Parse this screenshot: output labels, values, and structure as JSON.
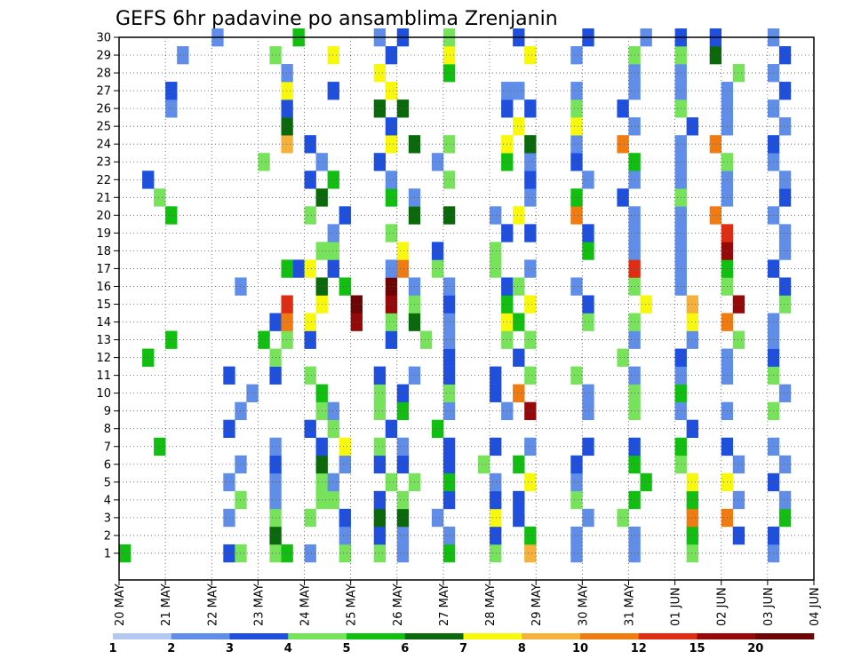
{
  "chart_data": {
    "type": "heatmap",
    "title": "GEFS 6hr padavine po ansamblima Zrenjanin",
    "xlabel": "",
    "ylabel": "",
    "x_ticks": [
      "20 MAY",
      "21 MAY",
      "22 MAY",
      "23 MAY",
      "24 MAY",
      "25 MAY",
      "26 MAY",
      "27 MAY",
      "28 MAY",
      "29 MAY",
      "30 MAY",
      "31 MAY",
      "01 JUN",
      "02 JUN",
      "03 JUN",
      "04 JUN"
    ],
    "y_ticks": [
      "1",
      "2",
      "3",
      "4",
      "5",
      "6",
      "7",
      "8",
      "9",
      "10",
      "11",
      "12",
      "13",
      "14",
      "15",
      "16",
      "17",
      "18",
      "19",
      "20",
      "21",
      "22",
      "23",
      "24",
      "25",
      "26",
      "27",
      "28",
      "29",
      "30"
    ],
    "members": 30,
    "steps_per_day": 4,
    "days": 15,
    "grid": true,
    "colorbar": {
      "labels": [
        "1",
        "2",
        "3",
        "4",
        "5",
        "6",
        "7",
        "8",
        "10",
        "12",
        "15",
        "20"
      ],
      "colors": [
        "#b4c8f4",
        "#5f8de8",
        "#1e4fde",
        "#77e35b",
        "#11bf11",
        "#0a690a",
        "#f8f80c",
        "#f5b13a",
        "#f07b11",
        "#e02c13",
        "#970808",
        "#6d0505"
      ]
    },
    "cells": [
      [
        1,
        0,
        4
      ],
      [
        13,
        4,
        4
      ],
      [
        12,
        2,
        4
      ],
      [
        7,
        3,
        4
      ],
      [
        20,
        4,
        4
      ],
      [
        21,
        3,
        3
      ],
      [
        22,
        2,
        2
      ],
      [
        26,
        4,
        1
      ],
      [
        27,
        4,
        2
      ],
      [
        29,
        5,
        1
      ],
      [
        30,
        8,
        1
      ],
      [
        1,
        9,
        2
      ],
      [
        1,
        10,
        3
      ],
      [
        3,
        9,
        1
      ],
      [
        4,
        10,
        3
      ],
      [
        5,
        9,
        1
      ],
      [
        6,
        10,
        1
      ],
      [
        8,
        9,
        2
      ],
      [
        9,
        10,
        1
      ],
      [
        10,
        11,
        1
      ],
      [
        11,
        9,
        2
      ],
      [
        13,
        12,
        4
      ],
      [
        14,
        13,
        2
      ],
      [
        16,
        10,
        1
      ],
      [
        17,
        15,
        2
      ],
      [
        23,
        12,
        3
      ],
      [
        1,
        13,
        3
      ],
      [
        1,
        14,
        4
      ],
      [
        2,
        13,
        5
      ],
      [
        3,
        13,
        3
      ],
      [
        4,
        13,
        1
      ],
      [
        5,
        13,
        1
      ],
      [
        6,
        13,
        2
      ],
      [
        7,
        13,
        1
      ],
      [
        11,
        13,
        2
      ],
      [
        12,
        13,
        3
      ],
      [
        13,
        14,
        3
      ],
      [
        14,
        14,
        8
      ],
      [
        15,
        14,
        9
      ],
      [
        17,
        14,
        4
      ],
      [
        24,
        14,
        7
      ],
      [
        25,
        14,
        5
      ],
      [
        26,
        14,
        2
      ],
      [
        27,
        14,
        6
      ],
      [
        28,
        14,
        1
      ],
      [
        29,
        13,
        3
      ],
      [
        30,
        15,
        4
      ],
      [
        1,
        16,
        1
      ],
      [
        3,
        16,
        3
      ],
      [
        4,
        17,
        3
      ],
      [
        5,
        17,
        3
      ],
      [
        6,
        17,
        5
      ],
      [
        7,
        17,
        2
      ],
      [
        8,
        16,
        2
      ],
      [
        9,
        17,
        3
      ],
      [
        10,
        17,
        4
      ],
      [
        11,
        16,
        3
      ],
      [
        13,
        16,
        2
      ],
      [
        14,
        16,
        6
      ],
      [
        15,
        17,
        6
      ],
      [
        16,
        17,
        5
      ],
      [
        17,
        16,
        6
      ],
      [
        18,
        17,
        3
      ],
      [
        20,
        16,
        3
      ],
      [
        21,
        17,
        5
      ],
      [
        22,
        16,
        2
      ],
      [
        23,
        17,
        1
      ],
      [
        24,
        16,
        2
      ],
      [
        1,
        19,
        3
      ],
      [
        2,
        19,
        1
      ],
      [
        3,
        19,
        2
      ],
      [
        4,
        18,
        3
      ],
      [
        5,
        18,
        1
      ],
      [
        6,
        19,
        1
      ],
      [
        7,
        19,
        6
      ],
      [
        8,
        18,
        3
      ],
      [
        9,
        18,
        1
      ],
      [
        14,
        20,
        10
      ],
      [
        15,
        20,
        11
      ],
      [
        16,
        19,
        4
      ],
      [
        17,
        18,
        2
      ],
      [
        18,
        18,
        3
      ],
      [
        19,
        18,
        1
      ],
      [
        20,
        19,
        2
      ],
      [
        22,
        18,
        4
      ],
      [
        27,
        18,
        2
      ],
      [
        29,
        18,
        6
      ],
      [
        1,
        22,
        3
      ],
      [
        2,
        22,
        2
      ],
      [
        3,
        22,
        5
      ],
      [
        4,
        22,
        2
      ],
      [
        5,
        23,
        3
      ],
      [
        6,
        22,
        2
      ],
      [
        7,
        22,
        3
      ],
      [
        8,
        23,
        2
      ],
      [
        9,
        22,
        3
      ],
      [
        10,
        22,
        3
      ],
      [
        11,
        22,
        2
      ],
      [
        13,
        23,
        2
      ],
      [
        14,
        23,
        3
      ],
      [
        15,
        23,
        10
      ],
      [
        16,
        23,
        11
      ],
      [
        17,
        23,
        1
      ],
      [
        19,
        23,
        3
      ],
      [
        21,
        23,
        4
      ],
      [
        22,
        23,
        1
      ],
      [
        23,
        22,
        2
      ],
      [
        24,
        23,
        6
      ],
      [
        25,
        23,
        2
      ],
      [
        26,
        22,
        5
      ],
      [
        27,
        23,
        6
      ],
      [
        28,
        22,
        6
      ],
      [
        29,
        23,
        2
      ],
      [
        30,
        22,
        1
      ],
      [
        1,
        24,
        1
      ],
      [
        2,
        24,
        1
      ],
      [
        3,
        24,
        5
      ],
      [
        4,
        24,
        3
      ],
      [
        5,
        25,
        3
      ],
      [
        6,
        24,
        2
      ],
      [
        7,
        24,
        1
      ],
      [
        9,
        24,
        4
      ],
      [
        10,
        24,
        2
      ],
      [
        11,
        25,
        1
      ],
      [
        13,
        26,
        3
      ],
      [
        14,
        25,
        5
      ],
      [
        15,
        25,
        3
      ],
      [
        16,
        25,
        1
      ],
      [
        17,
        24,
        8
      ],
      [
        18,
        24,
        6
      ],
      [
        20,
        25,
        5
      ],
      [
        21,
        25,
        1
      ],
      [
        24,
        25,
        5
      ],
      [
        26,
        24,
        5
      ],
      [
        30,
        24,
        2
      ],
      [
        1,
        28,
        4
      ],
      [
        2,
        28,
        1
      ],
      [
        3,
        27,
        1
      ],
      [
        4,
        28,
        2
      ],
      [
        5,
        28,
        4
      ],
      [
        6,
        28,
        2
      ],
      [
        7,
        28,
        2
      ],
      [
        8,
        27,
        4
      ],
      [
        9,
        28,
        1
      ],
      [
        10,
        28,
        3
      ],
      [
        11,
        28,
        2
      ],
      [
        12,
        28,
        2
      ],
      [
        13,
        28,
        1
      ],
      [
        14,
        28,
        1
      ],
      [
        15,
        28,
        2
      ],
      [
        16,
        28,
        1
      ],
      [
        17,
        27,
        3
      ],
      [
        18,
        27,
        2
      ],
      [
        20,
        28,
        5
      ],
      [
        22,
        28,
        3
      ],
      [
        23,
        27,
        1
      ],
      [
        24,
        28,
        3
      ],
      [
        28,
        28,
        4
      ],
      [
        29,
        28,
        6
      ],
      [
        30,
        28,
        3
      ],
      [
        1,
        32,
        3
      ],
      [
        2,
        32,
        2
      ],
      [
        3,
        32,
        6
      ],
      [
        4,
        32,
        2
      ],
      [
        5,
        32,
        1
      ],
      [
        6,
        31,
        3
      ],
      [
        7,
        32,
        2
      ],
      [
        9,
        33,
        1
      ],
      [
        10,
        32,
        2
      ],
      [
        11,
        32,
        2
      ],
      [
        13,
        33,
        3
      ],
      [
        14,
        33,
        6
      ],
      [
        15,
        33,
        4
      ],
      [
        16,
        33,
        2
      ],
      [
        17,
        32,
        3
      ],
      [
        18,
        32,
        3
      ],
      [
        19,
        33,
        2
      ],
      [
        20,
        32,
        1
      ],
      [
        23,
        33,
        4
      ],
      [
        24,
        33,
        6
      ],
      [
        26,
        33,
        2
      ],
      [
        27,
        33,
        1
      ],
      [
        1,
        35,
        7
      ],
      [
        2,
        35,
        4
      ],
      [
        3,
        34,
        2
      ],
      [
        4,
        34,
        2
      ],
      [
        5,
        35,
        6
      ],
      [
        6,
        34,
        4
      ],
      [
        7,
        35,
        1
      ],
      [
        9,
        35,
        10
      ],
      [
        10,
        34,
        8
      ],
      [
        11,
        35,
        3
      ],
      [
        12,
        34,
        2
      ],
      [
        13,
        35,
        3
      ],
      [
        14,
        34,
        4
      ],
      [
        15,
        35,
        6
      ],
      [
        16,
        34,
        3
      ],
      [
        17,
        35,
        1
      ],
      [
        19,
        35,
        2
      ],
      [
        20,
        34,
        6
      ],
      [
        21,
        35,
        1
      ],
      [
        22,
        35,
        2
      ],
      [
        23,
        35,
        1
      ],
      [
        24,
        35,
        5
      ],
      [
        25,
        34,
        6
      ],
      [
        26,
        35,
        2
      ],
      [
        27,
        34,
        1
      ],
      [
        29,
        35,
        6
      ],
      [
        30,
        34,
        2
      ],
      [
        1,
        39,
        1
      ],
      [
        2,
        39,
        1
      ],
      [
        3,
        40,
        1
      ],
      [
        4,
        39,
        3
      ],
      [
        5,
        39,
        1
      ],
      [
        6,
        39,
        2
      ],
      [
        7,
        40,
        2
      ],
      [
        9,
        40,
        1
      ],
      [
        10,
        40,
        1
      ],
      [
        11,
        39,
        3
      ],
      [
        14,
        40,
        3
      ],
      [
        15,
        40,
        2
      ],
      [
        16,
        39,
        1
      ],
      [
        18,
        40,
        4
      ],
      [
        19,
        40,
        2
      ],
      [
        20,
        39,
        8
      ],
      [
        21,
        39,
        4
      ],
      [
        22,
        40,
        1
      ],
      [
        23,
        39,
        2
      ],
      [
        24,
        39,
        1
      ],
      [
        25,
        39,
        6
      ],
      [
        26,
        39,
        3
      ],
      [
        27,
        39,
        1
      ],
      [
        29,
        39,
        1
      ],
      [
        30,
        40,
        2
      ],
      [
        1,
        44,
        1
      ],
      [
        2,
        44,
        1
      ],
      [
        3,
        43,
        3
      ],
      [
        4,
        44,
        4
      ],
      [
        5,
        45,
        4
      ],
      [
        6,
        44,
        4
      ],
      [
        7,
        44,
        2
      ],
      [
        9,
        44,
        3
      ],
      [
        10,
        44,
        3
      ],
      [
        11,
        44,
        1
      ],
      [
        12,
        43,
        3
      ],
      [
        13,
        44,
        1
      ],
      [
        14,
        44,
        3
      ],
      [
        15,
        45,
        6
      ],
      [
        16,
        44,
        3
      ],
      [
        17,
        44,
        9
      ],
      [
        18,
        44,
        1
      ],
      [
        19,
        44,
        1
      ],
      [
        20,
        44,
        1
      ],
      [
        21,
        43,
        2
      ],
      [
        22,
        44,
        1
      ],
      [
        23,
        44,
        4
      ],
      [
        24,
        43,
        8
      ],
      [
        25,
        44,
        1
      ],
      [
        26,
        43,
        2
      ],
      [
        27,
        44,
        1
      ],
      [
        28,
        44,
        1
      ],
      [
        29,
        44,
        3
      ],
      [
        30,
        45,
        1
      ],
      [
        1,
        49,
        3
      ],
      [
        2,
        49,
        4
      ],
      [
        3,
        49,
        8
      ],
      [
        4,
        49,
        4
      ],
      [
        5,
        49,
        6
      ],
      [
        6,
        48,
        3
      ],
      [
        7,
        48,
        4
      ],
      [
        8,
        49,
        2
      ],
      [
        9,
        48,
        1
      ],
      [
        10,
        48,
        4
      ],
      [
        11,
        48,
        1
      ],
      [
        12,
        48,
        2
      ],
      [
        13,
        49,
        1
      ],
      [
        14,
        49,
        6
      ],
      [
        15,
        49,
        7
      ],
      [
        16,
        48,
        1
      ],
      [
        17,
        48,
        1
      ],
      [
        18,
        48,
        1
      ],
      [
        19,
        48,
        1
      ],
      [
        20,
        48,
        1
      ],
      [
        21,
        48,
        3
      ],
      [
        22,
        48,
        1
      ],
      [
        23,
        48,
        1
      ],
      [
        24,
        48,
        1
      ],
      [
        25,
        49,
        2
      ],
      [
        26,
        48,
        3
      ],
      [
        27,
        48,
        1
      ],
      [
        28,
        48,
        1
      ],
      [
        29,
        48,
        3
      ],
      [
        30,
        48,
        2
      ],
      [
        2,
        53,
        2
      ],
      [
        3,
        52,
        8
      ],
      [
        4,
        53,
        1
      ],
      [
        5,
        52,
        6
      ],
      [
        6,
        53,
        1
      ],
      [
        7,
        52,
        2
      ],
      [
        9,
        52,
        1
      ],
      [
        11,
        52,
        1
      ],
      [
        12,
        52,
        1
      ],
      [
        13,
        53,
        3
      ],
      [
        14,
        52,
        8
      ],
      [
        15,
        53,
        10
      ],
      [
        16,
        52,
        3
      ],
      [
        17,
        52,
        4
      ],
      [
        18,
        52,
        10
      ],
      [
        19,
        52,
        9
      ],
      [
        20,
        51,
        8
      ],
      [
        21,
        52,
        1
      ],
      [
        22,
        52,
        1
      ],
      [
        23,
        52,
        3
      ],
      [
        24,
        51,
        8
      ],
      [
        25,
        52,
        1
      ],
      [
        26,
        52,
        1
      ],
      [
        27,
        52,
        1
      ],
      [
        28,
        53,
        3
      ],
      [
        29,
        51,
        5
      ],
      [
        30,
        51,
        2
      ],
      [
        1,
        56,
        1
      ],
      [
        2,
        56,
        2
      ],
      [
        3,
        57,
        4
      ],
      [
        4,
        57,
        1
      ],
      [
        5,
        56,
        2
      ],
      [
        6,
        57,
        1
      ],
      [
        7,
        56,
        1
      ],
      [
        9,
        56,
        3
      ],
      [
        10,
        57,
        1
      ],
      [
        11,
        56,
        3
      ],
      [
        12,
        56,
        2
      ],
      [
        13,
        56,
        1
      ],
      [
        14,
        56,
        1
      ],
      [
        15,
        57,
        3
      ],
      [
        16,
        57,
        2
      ],
      [
        17,
        56,
        2
      ],
      [
        18,
        57,
        1
      ],
      [
        19,
        57,
        1
      ],
      [
        20,
        56,
        1
      ],
      [
        21,
        57,
        2
      ],
      [
        22,
        57,
        1
      ],
      [
        23,
        56,
        1
      ],
      [
        24,
        56,
        2
      ],
      [
        25,
        57,
        1
      ],
      [
        26,
        56,
        1
      ],
      [
        27,
        57,
        2
      ],
      [
        28,
        56,
        1
      ],
      [
        29,
        57,
        2
      ],
      [
        30,
        56,
        1
      ]
    ]
  }
}
